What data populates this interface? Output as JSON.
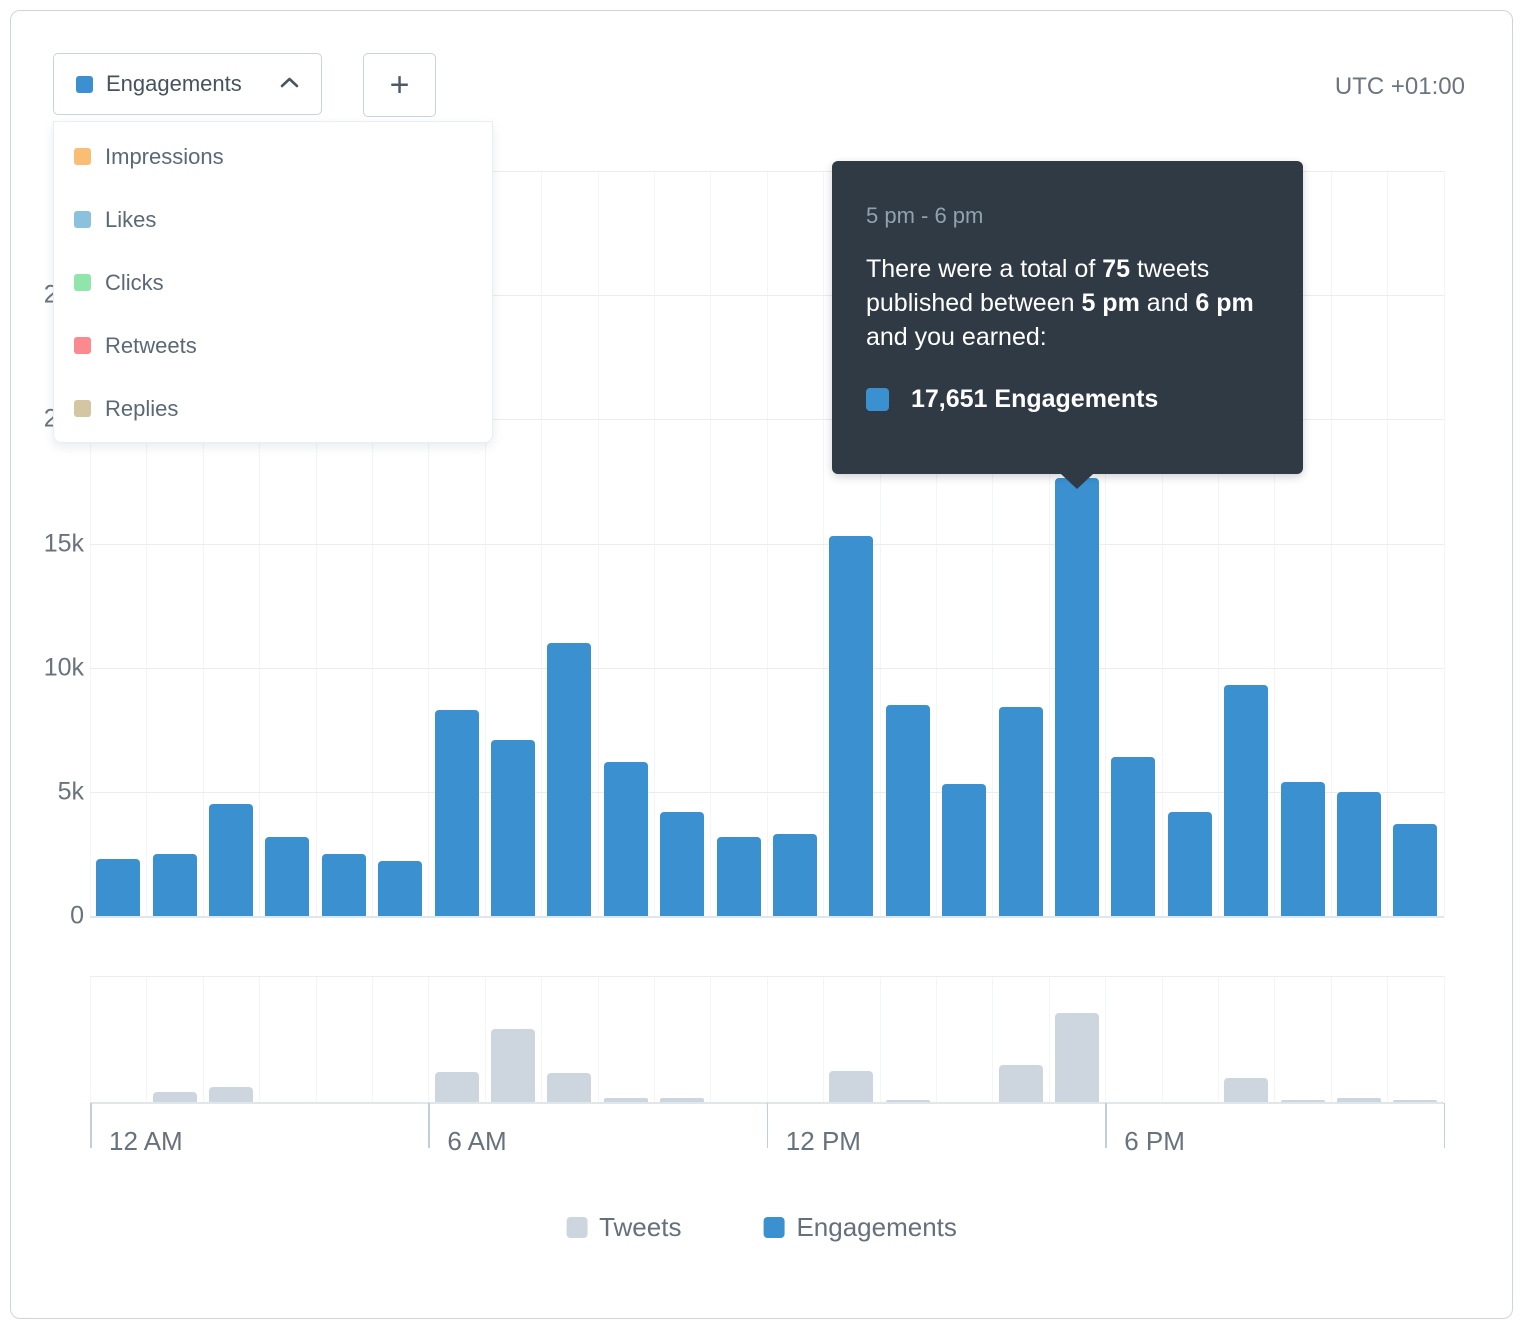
{
  "controls": {
    "metric_selector": {
      "label": "Engagements",
      "swatch_color": "#3b91d0"
    },
    "add_button_label": "+",
    "timezone": "UTC +01:00",
    "menu_items": [
      {
        "label": "Impressions",
        "color": "#fabd74"
      },
      {
        "label": "Likes",
        "color": "#8ac1dd"
      },
      {
        "label": "Clicks",
        "color": "#90e5ab"
      },
      {
        "label": "Retweets",
        "color": "#fb8a90"
      },
      {
        "label": "Replies",
        "color": "#d5c6a3"
      }
    ]
  },
  "tooltip": {
    "title": "5 pm - 6 pm",
    "body_segments": [
      {
        "text": "There were a total of ",
        "bold": false
      },
      {
        "text": "75",
        "bold": true
      },
      {
        "text": " tweets published between ",
        "bold": false
      },
      {
        "text": "5 pm",
        "bold": true
      },
      {
        "text": " and ",
        "bold": false
      },
      {
        "text": "6 pm",
        "bold": true
      },
      {
        "text": " and you earned:",
        "bold": false
      }
    ],
    "metric_value": "17,651 Engagements",
    "swatch_color": "#3b91d0"
  },
  "chart_data": {
    "type": "bar",
    "categories": [
      "12 AM",
      "1 AM",
      "2 AM",
      "3 AM",
      "4 AM",
      "5 AM",
      "6 AM",
      "7 AM",
      "8 AM",
      "9 AM",
      "10 AM",
      "11 AM",
      "12 PM",
      "1 PM",
      "2 PM",
      "3 PM",
      "4 PM",
      "5 PM",
      "6 PM",
      "7 PM",
      "8 PM",
      "9 PM",
      "10 PM",
      "11 PM"
    ],
    "series": [
      {
        "name": "Engagements",
        "color": "#3b91d0",
        "values": [
          2300,
          2500,
          4500,
          3200,
          2500,
          2200,
          8300,
          7100,
          11000,
          6200,
          4200,
          3200,
          3300,
          15300,
          8500,
          5300,
          8400,
          17651,
          6400,
          4200,
          9300,
          5400,
          5000,
          3700
        ]
      },
      {
        "name": "Tweets",
        "color": "#cdd6df",
        "values": [
          0,
          8,
          13,
          0,
          0,
          0,
          25,
          61,
          24,
          3,
          3,
          0,
          0,
          26,
          1,
          0,
          31,
          75,
          0,
          0,
          20,
          2,
          3,
          2
        ]
      }
    ],
    "title": "",
    "xlabel": "",
    "ylabel": "",
    "x_tick_labels": [
      "12 AM",
      "6 AM",
      "12 PM",
      "6 PM"
    ],
    "y_tick_labels": [
      "0",
      "5k",
      "10k",
      "15k",
      "20k",
      "25k"
    ],
    "ylim_engagements": [
      0,
      30000
    ],
    "ylim_tweets": [
      0,
      106
    ],
    "grid": true,
    "legend_position": "bottom"
  },
  "legend": [
    {
      "label": "Tweets",
      "color": "#cdd6df"
    },
    {
      "label": "Engagements",
      "color": "#3b91d0"
    }
  ]
}
